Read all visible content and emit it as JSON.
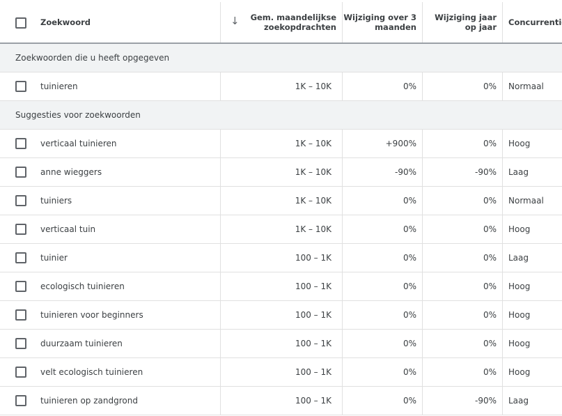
{
  "header": {
    "columns": [
      "Zoekwoord",
      "Gem. maandelijkse zoekopdrachten",
      "Wijziging over 3 maanden",
      "Wijziging jaar op jaar",
      "Concurrentie"
    ]
  },
  "sections": [
    {
      "title": "Zoekwoorden die u heeft opgegeven",
      "rows": [
        [
          "tuinieren",
          "1K – 10K",
          "0%",
          "0%",
          "Normaal"
        ]
      ]
    },
    {
      "title": "Suggesties voor zoekwoorden",
      "rows": [
        [
          "verticaal tuinieren",
          "1K – 10K",
          "+900%",
          "0%",
          "Hoog"
        ],
        [
          "anne wieggers",
          "1K – 10K",
          "-90%",
          "-90%",
          "Laag"
        ],
        [
          "tuiniers",
          "1K – 10K",
          "0%",
          "0%",
          "Normaal"
        ],
        [
          "verticaal tuin",
          "1K – 10K",
          "0%",
          "0%",
          "Hoog"
        ],
        [
          "tuinier",
          "100 – 1K",
          "0%",
          "0%",
          "Laag"
        ],
        [
          "ecologisch tuinieren",
          "100 – 1K",
          "0%",
          "0%",
          "Hoog"
        ],
        [
          "tuinieren voor beginners",
          "100 – 1K",
          "0%",
          "0%",
          "Hoog"
        ],
        [
          "duurzaam tuinieren",
          "100 – 1K",
          "0%",
          "0%",
          "Hoog"
        ],
        [
          "velt ecologisch tuinieren",
          "100 – 1K",
          "0%",
          "0%",
          "Hoog"
        ],
        [
          "tuinieren op zandgrond",
          "100 – 1K",
          "0%",
          "-90%",
          "Laag"
        ]
      ]
    }
  ]
}
